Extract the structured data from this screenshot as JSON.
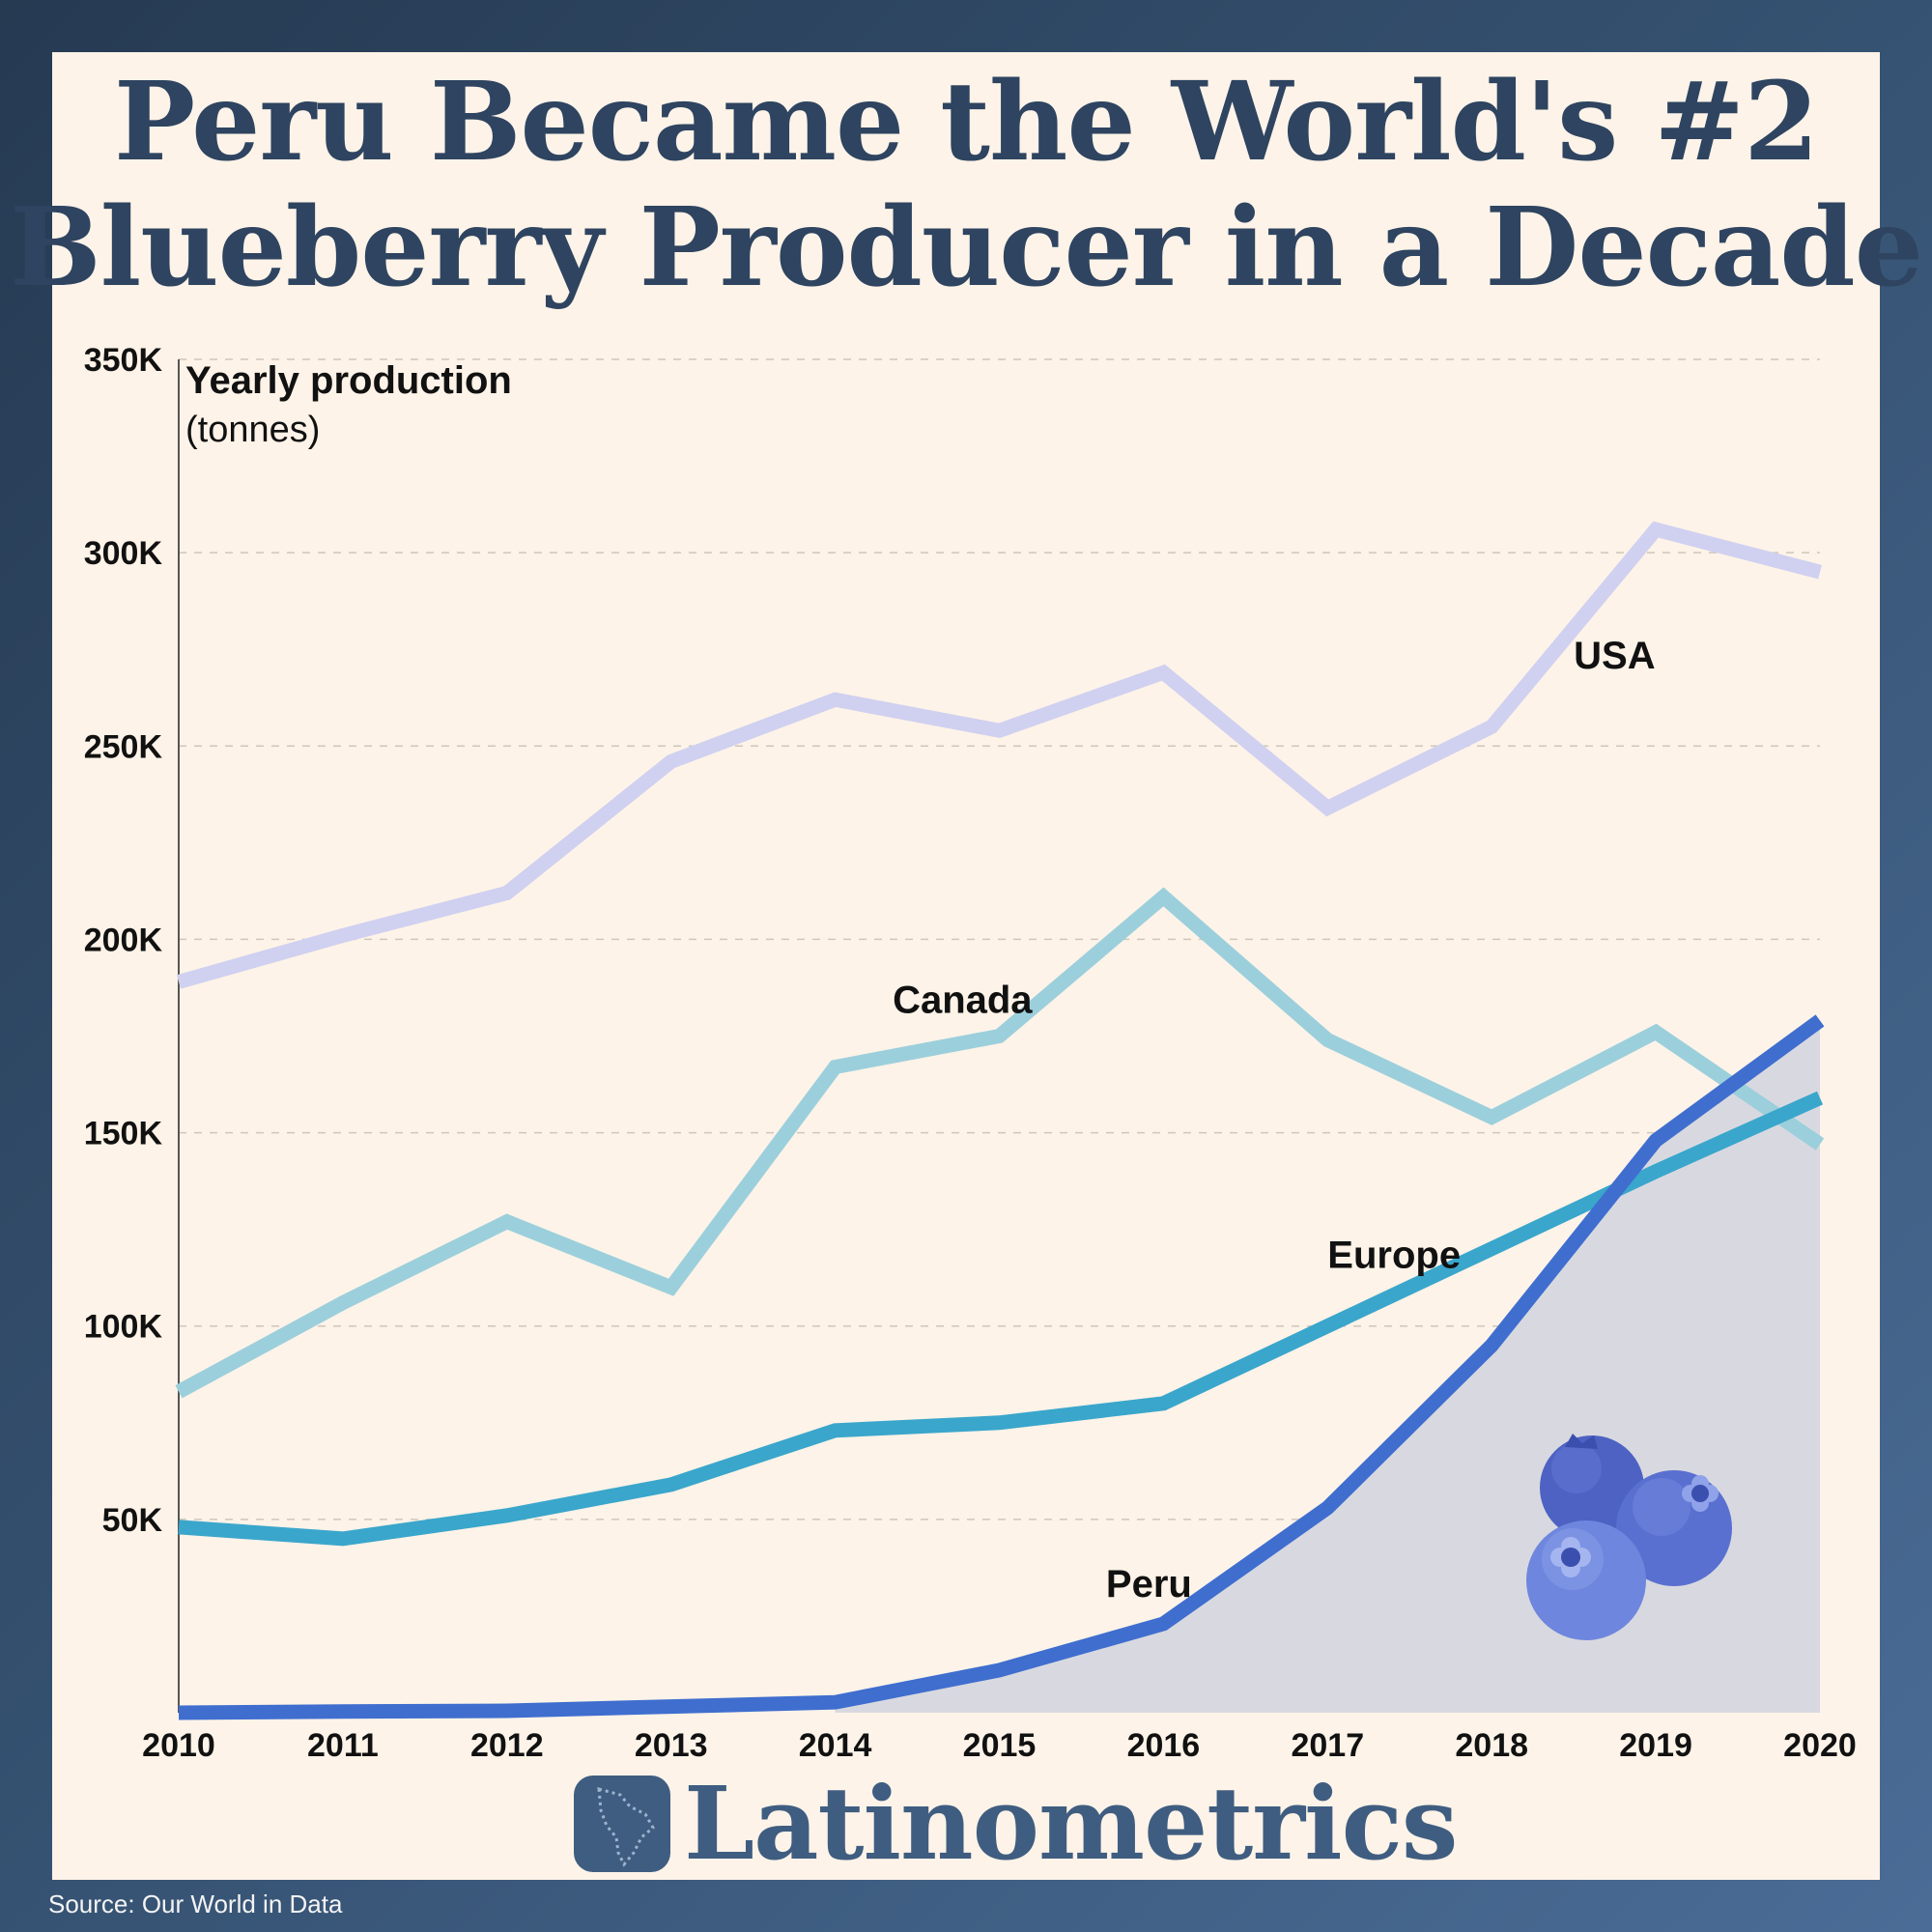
{
  "title": {
    "line1": "Peru Became the World's #2",
    "line2": "Blueberry Producer in a Decade"
  },
  "brand": {
    "name": "Latinometrics",
    "logo_icon": "latin-america-map-icon"
  },
  "source": "Source: Our World in Data",
  "decoration": {
    "icon": "blueberries-icon",
    "colors": [
      "#4c64c4",
      "#5c76d2",
      "#7a90e0"
    ]
  },
  "chart_data": {
    "type": "line",
    "title": "Peru Became the World's #2 Blueberry Producer in a Decade",
    "ylabel": "Yearly production",
    "ylabel_unit": "(tonnes)",
    "xlabel": "",
    "x": [
      2010,
      2011,
      2012,
      2013,
      2014,
      2015,
      2016,
      2017,
      2018,
      2019,
      2020
    ],
    "x_tick_labels": [
      "2010",
      "2011",
      "2012",
      "2013",
      "2014",
      "2015",
      "2016",
      "2017",
      "2018",
      "2019",
      "2020"
    ],
    "ylim": [
      0,
      350000
    ],
    "y_ticks": [
      50000,
      100000,
      150000,
      200000,
      250000,
      300000,
      350000
    ],
    "y_tick_labels": [
      "50K",
      "100K",
      "150K",
      "200K",
      "250K",
      "300K",
      "350K"
    ],
    "grid": "horizontal dashed",
    "legend": "direct labels on lines",
    "series": [
      {
        "name": "USA",
        "color": "#d0d0f0",
        "values": [
          189000,
          201000,
          212000,
          246000,
          262000,
          254000,
          269000,
          234000,
          255000,
          306000,
          295000
        ]
      },
      {
        "name": "Canada",
        "color": "#9ccfdc",
        "values": [
          83000,
          106000,
          127000,
          110000,
          167000,
          175000,
          211000,
          174000,
          154000,
          176000,
          147000
        ]
      },
      {
        "name": "Europe",
        "color": "#3aa6cc",
        "values": [
          48000,
          45000,
          51000,
          59000,
          73000,
          75000,
          80000,
          100000,
          120000,
          140000,
          159000
        ]
      },
      {
        "name": "Peru",
        "color": "#3f6ecf",
        "fill": "#d8d9e0",
        "values": [
          0,
          300,
          500,
          1600,
          2700,
          11000,
          23000,
          53000,
          95000,
          148000,
          179000
        ]
      }
    ]
  }
}
